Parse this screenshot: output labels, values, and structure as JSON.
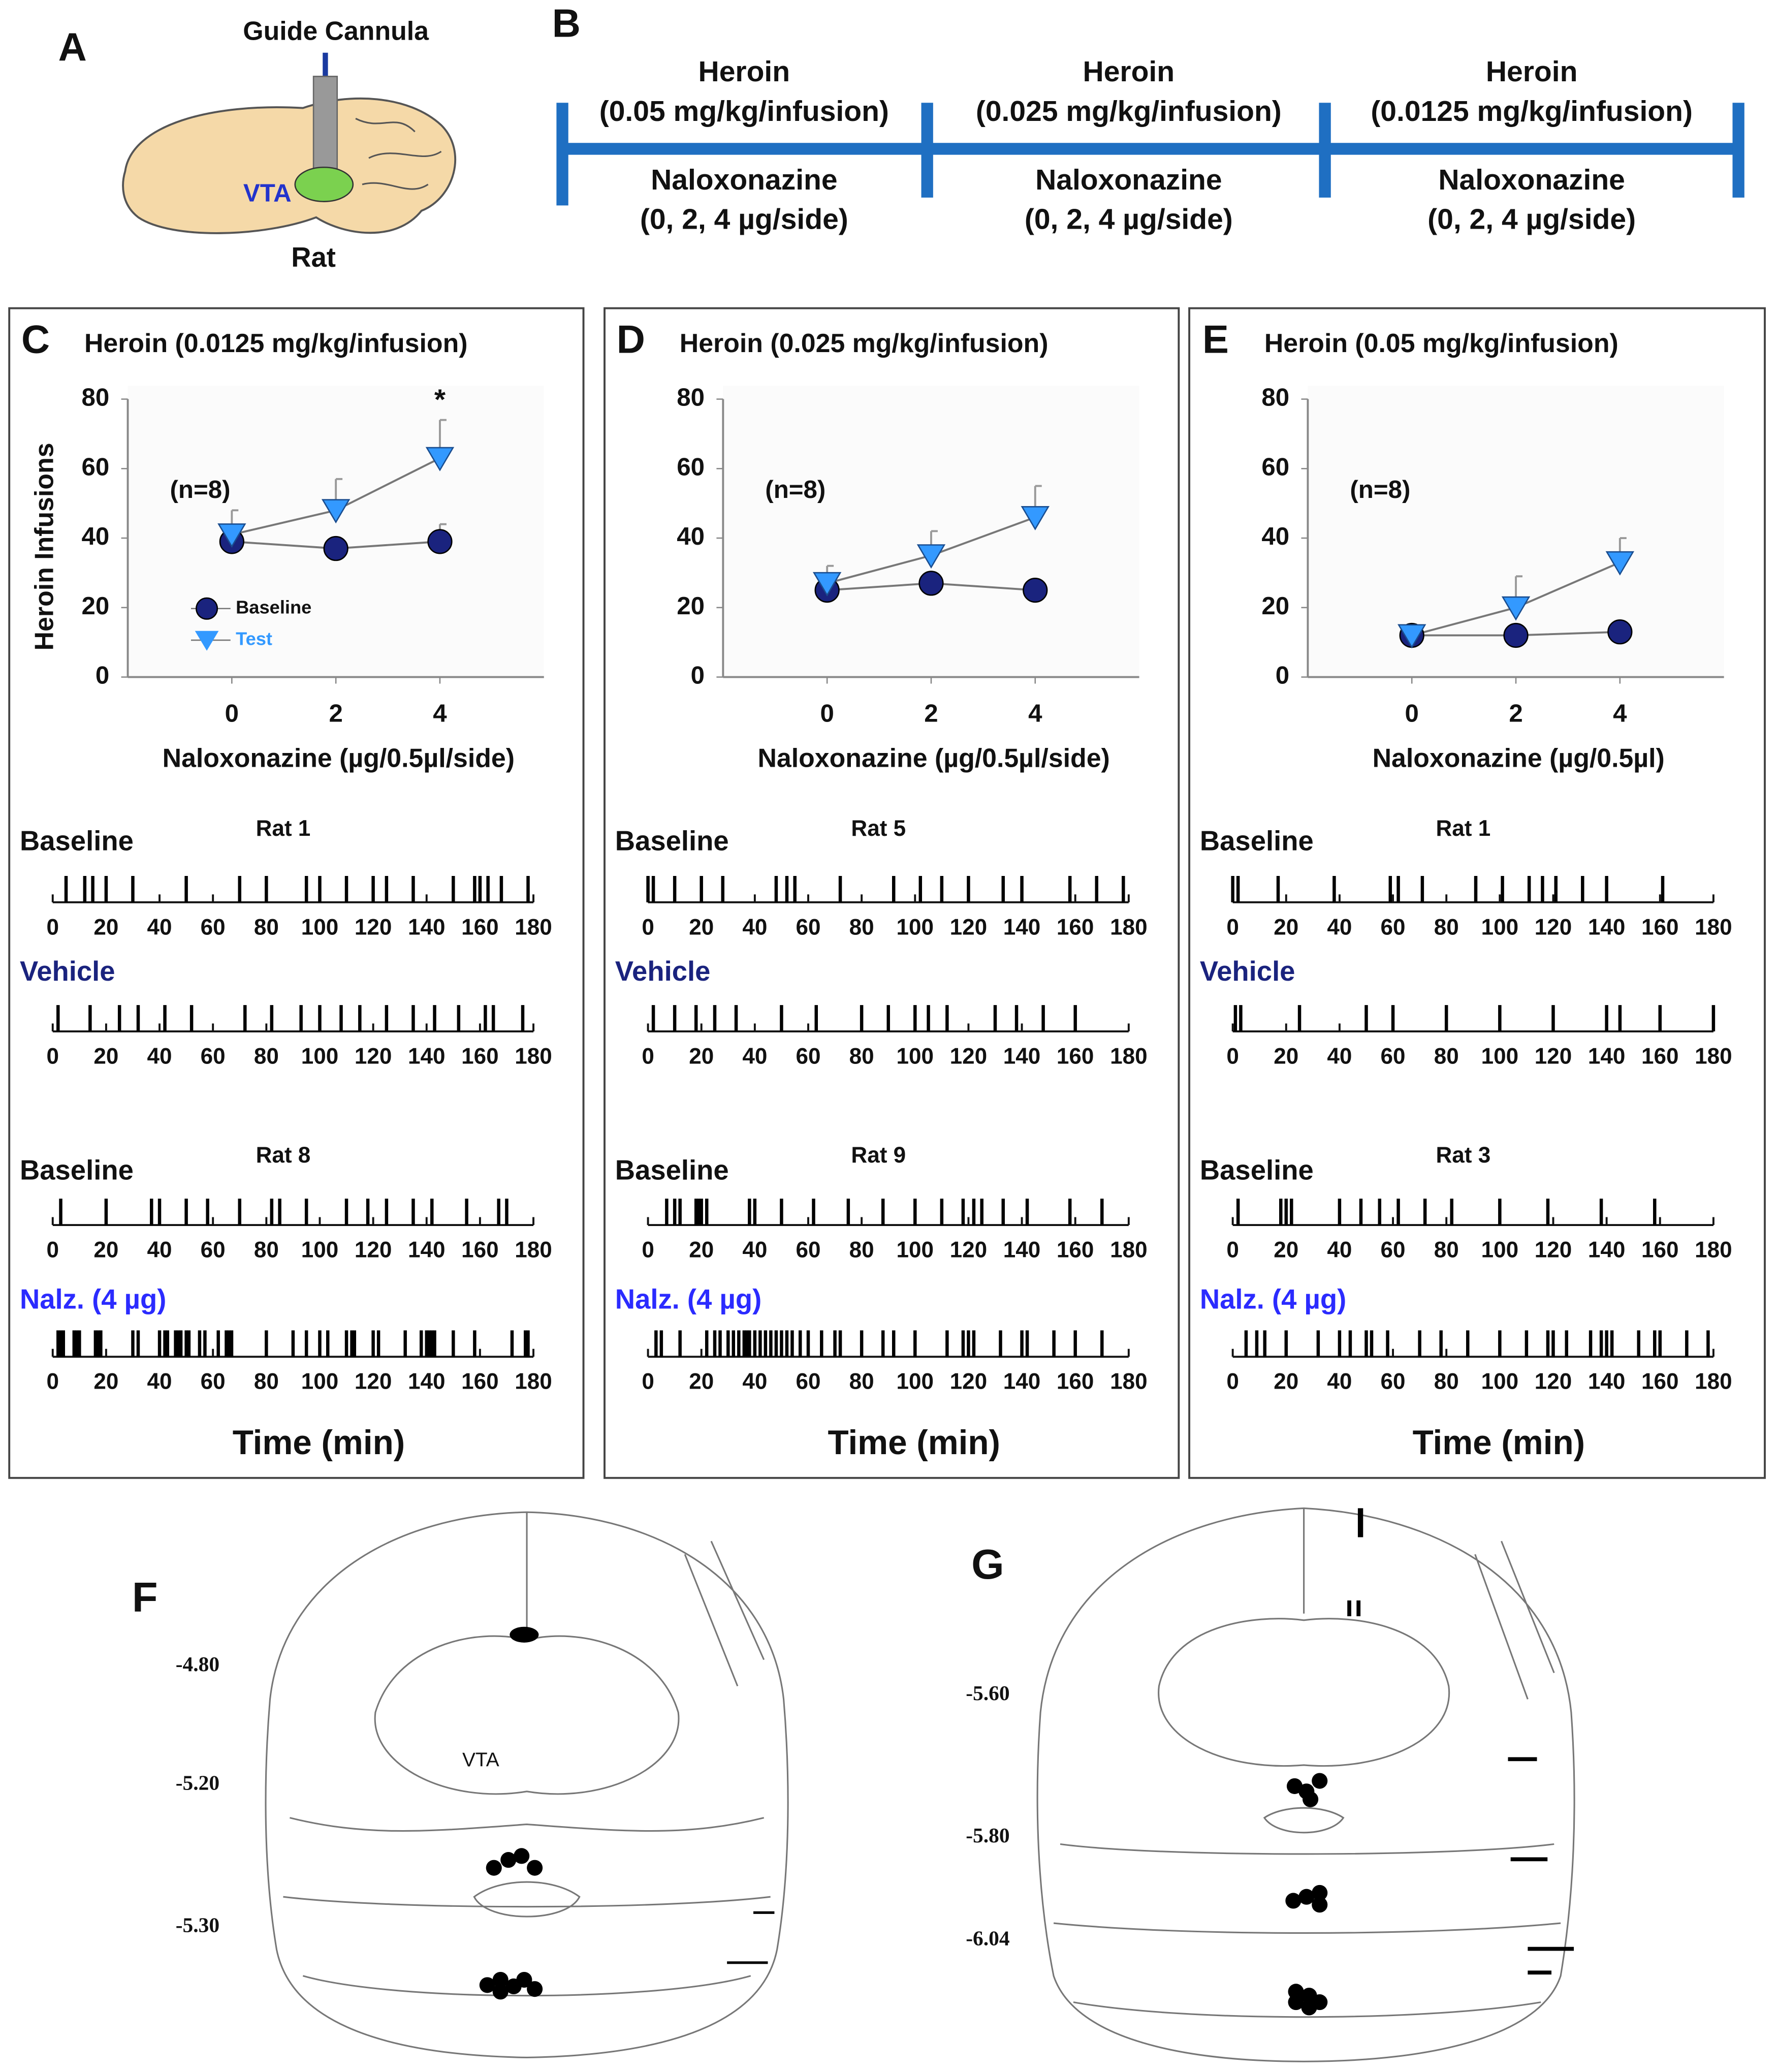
{
  "panel_a": {
    "label": "A",
    "cannula": "Guide Cannula",
    "region": "VTA",
    "species": "Rat"
  },
  "panel_b": {
    "label": "B",
    "phases": [
      {
        "drug": "Heroin",
        "dose": "(0.05 mg/kg/infusion)",
        "treatment": "Naloxonazine",
        "doses": "(0, 2, 4 µg/side)"
      },
      {
        "drug": "Heroin",
        "dose": "(0.025 mg/kg/infusion)",
        "treatment": "Naloxonazine",
        "doses": "(0, 2, 4 µg/side)"
      },
      {
        "drug": "Heroin",
        "dose": "(0.0125 mg/kg/infusion)",
        "treatment": "Naloxonazine",
        "doses": "(0, 2, 4 µg/side)"
      }
    ]
  },
  "panel_f": {
    "label": "F",
    "region": "VTA",
    "levels": [
      "-4.80",
      "-5.20",
      "-5.30"
    ]
  },
  "panel_g": {
    "label": "G",
    "levels": [
      "-5.60",
      "-5.80",
      "-6.04"
    ]
  },
  "chart_data": [
    {
      "type": "line",
      "label": "C",
      "title": "Heroin (0.0125 mg/kg/infusion)",
      "annotation": "(n=8)",
      "significance": "*",
      "x_label": "Naloxonazine (µg/0.5µl/side)",
      "y_label": "Heroin Infusions",
      "x": [
        0,
        2,
        4
      ],
      "xlim": [
        -2,
        6
      ],
      "xticks": [
        0,
        2,
        4
      ],
      "ylim": [
        0,
        80
      ],
      "yticks": [
        0,
        20,
        40,
        60,
        80
      ],
      "legend": "lower left",
      "series": [
        {
          "name": "Baseline",
          "color": "#1a237e",
          "marker": "circle",
          "values": [
            39,
            37,
            39
          ],
          "errors": [
            3,
            2,
            5
          ]
        },
        {
          "name": "Test",
          "color": "#3399ff",
          "marker": "triangle",
          "values": [
            41,
            48,
            63
          ],
          "errors": [
            7,
            9,
            11
          ]
        }
      ],
      "raster_xlim": [
        0,
        180
      ],
      "raster_xticks": [
        0,
        20,
        40,
        60,
        80,
        100,
        120,
        140,
        160,
        180
      ],
      "raster_xlabel": "Time (min)",
      "rasters": [
        {
          "rat": "Rat 1",
          "rows": [
            {
              "label": "Baseline",
              "color": "#111111",
              "events": [
                5,
                12,
                15,
                20,
                30,
                50,
                70,
                80,
                95,
                100,
                110,
                120,
                125,
                135,
                150,
                158,
                160,
                163,
                168,
                178
              ]
            },
            {
              "label": "Vehicle",
              "color": "#1a237e",
              "events": [
                2,
                14,
                25,
                32,
                42,
                52,
                72,
                82,
                93,
                100,
                108,
                115,
                125,
                135,
                143,
                152,
                162,
                165,
                176
              ]
            }
          ]
        },
        {
          "rat": "Rat 8",
          "rows": [
            {
              "label": "Baseline",
              "color": "#111111",
              "events": [
                3,
                20,
                37,
                40,
                50,
                58,
                70,
                82,
                85,
                95,
                110,
                118,
                125,
                135,
                142,
                155,
                167,
                170
              ]
            },
            {
              "label": "Nalz. (4 µg)",
              "color": "#2b2bff",
              "events": [
                2,
                3,
                4,
                8,
                9,
                10,
                16,
                17,
                18,
                30,
                32,
                40,
                42,
                43,
                46,
                47,
                48,
                50,
                51,
                55,
                57,
                62,
                65,
                66,
                67,
                80,
                90,
                95,
                100,
                103,
                110,
                112,
                113,
                120,
                122,
                132,
                138,
                140,
                141,
                142,
                143,
                150,
                158,
                172,
                177,
                178
              ]
            }
          ]
        }
      ]
    },
    {
      "type": "line",
      "label": "D",
      "title": "Heroin (0.025 mg/kg/infusion)",
      "annotation": "(n=8)",
      "x_label": "Naloxonazine (µg/0.5µl/side)",
      "x": [
        0,
        2,
        4
      ],
      "xlim": [
        -2,
        6
      ],
      "xticks": [
        0,
        2,
        4
      ],
      "ylim": [
        0,
        80
      ],
      "yticks": [
        0,
        20,
        40,
        60,
        80
      ],
      "series": [
        {
          "name": "Baseline",
          "color": "#1a237e",
          "marker": "circle",
          "values": [
            25,
            27,
            25
          ],
          "errors": [
            2,
            2,
            2
          ]
        },
        {
          "name": "Test",
          "color": "#3399ff",
          "marker": "triangle",
          "values": [
            27,
            35,
            46
          ],
          "errors": [
            5,
            7,
            9
          ]
        }
      ],
      "raster_xlim": [
        0,
        180
      ],
      "raster_xticks": [
        0,
        20,
        40,
        60,
        80,
        100,
        120,
        140,
        160,
        180
      ],
      "raster_xlabel": "Time (min)",
      "rasters": [
        {
          "rat": "Rat 5",
          "rows": [
            {
              "label": "Baseline",
              "color": "#111111",
              "events": [
                0,
                2,
                10,
                20,
                28,
                48,
                52,
                55,
                72,
                92,
                102,
                110,
                120,
                133,
                140,
                158,
                168,
                178
              ]
            },
            {
              "label": "Vehicle",
              "color": "#1a237e",
              "events": [
                2,
                10,
                18,
                25,
                33,
                50,
                63,
                80,
                90,
                100,
                105,
                112,
                130,
                138,
                148,
                160
              ]
            }
          ]
        },
        {
          "rat": "Rat 9",
          "rows": [
            {
              "label": "Baseline",
              "color": "#111111",
              "events": [
                7,
                10,
                12,
                18,
                19,
                20,
                22,
                38,
                40,
                50,
                62,
                75,
                88,
                100,
                110,
                118,
                122,
                125,
                133,
                142,
                158,
                170
              ]
            },
            {
              "label": "Nalz. (4 µg)",
              "color": "#2b2bff",
              "events": [
                3,
                5,
                12,
                22,
                25,
                27,
                30,
                32,
                34,
                36,
                37,
                38,
                40,
                42,
                44,
                46,
                48,
                50,
                52,
                54,
                57,
                60,
                65,
                70,
                72,
                80,
                88,
                92,
                100,
                112,
                118,
                120,
                122,
                132,
                140,
                142,
                152,
                160,
                170
              ]
            }
          ]
        }
      ]
    },
    {
      "type": "line",
      "label": "E",
      "title": "Heroin (0.05 mg/kg/infusion)",
      "annotation": "(n=8)",
      "x_label": "Naloxonazine (µg/0.5µl)",
      "x": [
        0,
        2,
        4
      ],
      "xlim": [
        -2,
        6
      ],
      "xticks": [
        0,
        2,
        4
      ],
      "ylim": [
        0,
        80
      ],
      "yticks": [
        0,
        20,
        40,
        60,
        80
      ],
      "series": [
        {
          "name": "Baseline",
          "color": "#1a237e",
          "marker": "circle",
          "values": [
            12,
            12,
            13
          ],
          "errors": [
            1,
            1,
            1
          ]
        },
        {
          "name": "Test",
          "color": "#3399ff",
          "marker": "triangle",
          "values": [
            12,
            20,
            33
          ],
          "errors": [
            1,
            9,
            7
          ]
        }
      ],
      "raster_xlim": [
        0,
        180
      ],
      "raster_xticks": [
        0,
        20,
        40,
        60,
        80,
        100,
        120,
        140,
        160,
        180
      ],
      "raster_xlabel": "Time (min)",
      "rasters": [
        {
          "rat": "Rat 1",
          "rows": [
            {
              "label": "Baseline",
              "color": "#111111",
              "events": [
                0,
                2,
                17,
                38,
                59,
                62,
                71,
                91,
                101,
                111,
                116,
                121,
                131,
                140,
                161
              ]
            },
            {
              "label": "Vehicle",
              "color": "#1a237e",
              "events": [
                1,
                3,
                25,
                50,
                60,
                80,
                100,
                120,
                140,
                145,
                160,
                180
              ]
            }
          ]
        },
        {
          "rat": "Rat 3",
          "rows": [
            {
              "label": "Baseline",
              "color": "#111111",
              "events": [
                2,
                18,
                20,
                22,
                40,
                48,
                55,
                62,
                72,
                82,
                100,
                118,
                138,
                158
              ]
            },
            {
              "label": "Nalz. (4 µg)",
              "color": "#2b2bff",
              "events": [
                5,
                9,
                12,
                20,
                32,
                40,
                44,
                50,
                52,
                58,
                70,
                78,
                88,
                100,
                110,
                118,
                120,
                125,
                134,
                138,
                140,
                142,
                152,
                158,
                160,
                170,
                178
              ]
            }
          ]
        }
      ]
    }
  ]
}
